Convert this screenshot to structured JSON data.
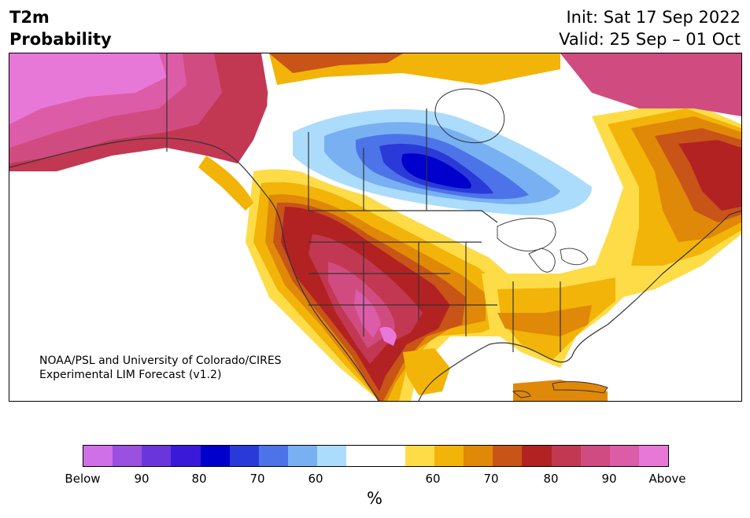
{
  "header": {
    "variable": "T2m",
    "product": "Probability",
    "init": "Init: Sat 17 Sep 2022",
    "valid": "Valid: 25 Sep – 01 Oct"
  },
  "map": {
    "credit_line1": "NOAA/PSL and University of Colorado/CIRES",
    "credit_line2": "Experimental LIM Forecast (v1.2)"
  },
  "colorbar": {
    "colors": [
      "#d070e8",
      "#9c50e0",
      "#6a36dc",
      "#3a1ad8",
      "#0000cc",
      "#2a3ad8",
      "#4c74e8",
      "#78b0f2",
      "#acdcfc",
      "#ffffff",
      "#ffffff",
      "#fedc48",
      "#f2b408",
      "#e08808",
      "#c85418",
      "#b22222",
      "#c23852",
      "#d04c80",
      "#dc5ca8",
      "#e878d8"
    ],
    "tick_labels": [
      "Below",
      "90",
      "80",
      "70",
      "60",
      "60",
      "70",
      "80",
      "90",
      "Above"
    ],
    "unit": "%"
  }
}
